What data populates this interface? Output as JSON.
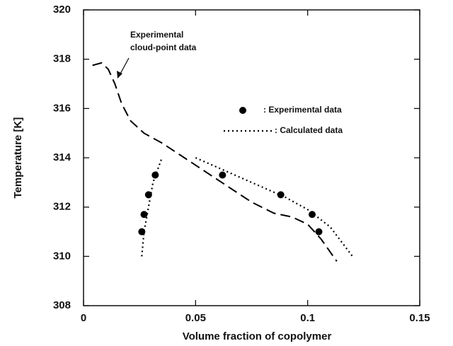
{
  "chart_data": {
    "type": "line",
    "x_label": "Volume fraction of copolymer",
    "y_label": "Temperature [K]",
    "annotation": [
      "Experimental",
      "cloud-point data"
    ],
    "xlim": [
      0,
      0.15
    ],
    "xticks": [
      0,
      0.05,
      0.1,
      0.15
    ],
    "ylim": [
      308,
      320
    ],
    "yticks": [
      308,
      310,
      312,
      314,
      316,
      318,
      320
    ],
    "series": [
      {
        "name": "Experimental cloud-point data",
        "mode": "lines",
        "dash": "dashed",
        "color": "#000000",
        "x": [
          0.004,
          0.008,
          0.011,
          0.014,
          0.017,
          0.021,
          0.027,
          0.035,
          0.045,
          0.055,
          0.065,
          0.075,
          0.085,
          0.093,
          0.1,
          0.106,
          0.113
        ],
        "values": [
          317.75,
          317.85,
          317.6,
          317.0,
          316.2,
          315.5,
          315.0,
          314.6,
          314.0,
          313.4,
          312.8,
          312.2,
          311.75,
          311.6,
          311.3,
          310.7,
          309.8
        ]
      },
      {
        "name": ": Experimental data",
        "mode": "markers",
        "color": "#000000",
        "x": [
          0.026,
          0.027,
          0.029,
          0.032,
          0.062,
          0.088,
          0.102,
          0.105
        ],
        "values": [
          311.0,
          311.7,
          312.5,
          313.3,
          313.3,
          312.5,
          311.7,
          311.0
        ]
      },
      {
        "name": ": Calculated data",
        "mode": "lines",
        "dash": "dotted",
        "color": "#000000",
        "x": [
          0.026,
          0.027,
          0.029,
          0.031,
          0.035,
          null,
          0.05,
          0.06,
          0.07,
          0.08,
          0.09,
          0.1,
          0.11,
          0.115,
          0.12
        ],
        "values": [
          310.0,
          311.0,
          312.0,
          313.0,
          314.0,
          null,
          314.0,
          313.6,
          313.2,
          312.8,
          312.4,
          311.9,
          311.2,
          310.6,
          310.0
        ]
      }
    ]
  }
}
